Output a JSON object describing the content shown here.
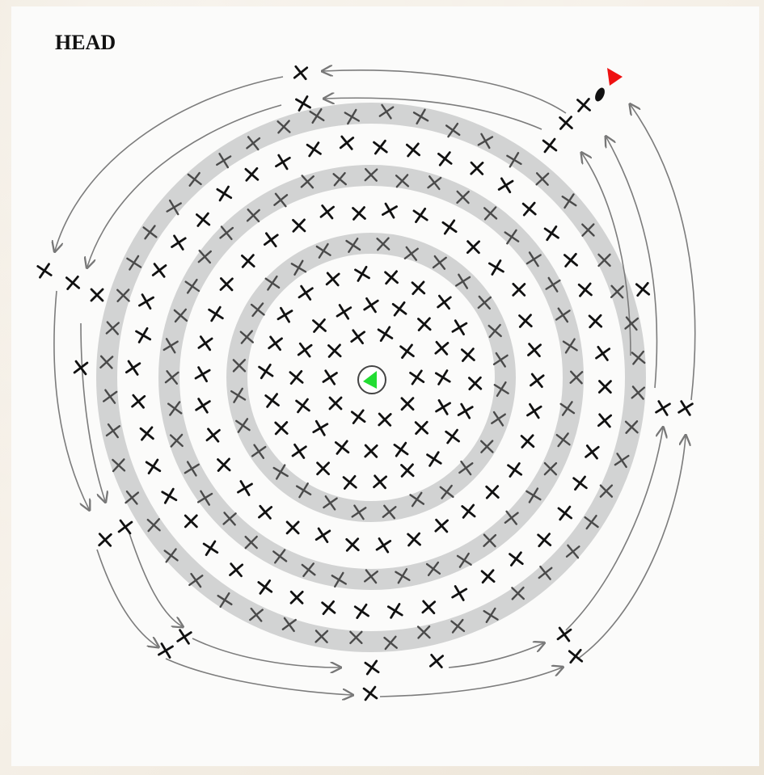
{
  "diagram": {
    "label": "HEAD",
    "colors": {
      "paper": "#fbfbfa",
      "ring_band": "#d2d3d3",
      "stitch": "#111111",
      "stitch_on_band": "#4a4a4a",
      "arrow_pencil": "#7a7a7a",
      "start_marker": "#22dd33",
      "end_marker": "#ee1111"
    },
    "icons": {
      "start": "green-triangle-start-marker",
      "end": "red-triangle-end-marker",
      "stitch": "x-cross-stitch-mark"
    }
  }
}
